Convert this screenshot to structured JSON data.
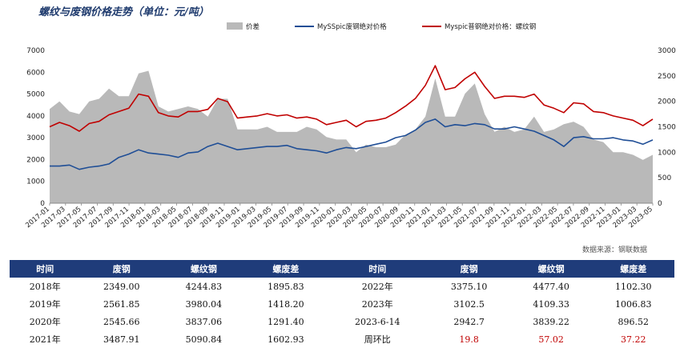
{
  "title": "螺纹与废钢价格走势（单位：元/吨）",
  "source": "数据来源：钢联数据",
  "chart_data": {
    "type": "line",
    "legend": [
      {
        "name": "价差",
        "color": "#b9b9b9",
        "kind": "area"
      },
      {
        "name": "MySSpic废钢绝对价格",
        "color": "#1f4e96",
        "kind": "line"
      },
      {
        "name": "Myspic普钢绝对价格：螺纹钢",
        "color": "#c00000",
        "kind": "line"
      }
    ],
    "legend_position": "top",
    "y_left": {
      "min": 0,
      "max": 7000,
      "ticks": [
        0,
        1000,
        2000,
        3000,
        4000,
        5000,
        6000,
        7000
      ]
    },
    "y_right": {
      "min": 0,
      "max": 3000,
      "ticks": [
        0,
        500,
        1000,
        1500,
        2000,
        2500,
        3000
      ]
    },
    "x_ticks": [
      "2017-01",
      "2017-03",
      "2017-05",
      "2017-07",
      "2017-09",
      "2017-11",
      "2018-01",
      "2018-03",
      "2018-05",
      "2018-07",
      "2018-09",
      "2018-11",
      "2019-01",
      "2019-03",
      "2019-05",
      "2019-07",
      "2019-09",
      "2019-11",
      "2020-01",
      "2020-03",
      "2020-05",
      "2020-07",
      "2020-09",
      "2020-11",
      "2021-01",
      "2021-03",
      "2021-05",
      "2021-07",
      "2021-09",
      "2021-11",
      "2022-01",
      "2022-03",
      "2022-05",
      "2022-07",
      "2022-09",
      "2022-11",
      "2023-01",
      "2023-03",
      "2023-05"
    ],
    "rebar_price": [
      3500,
      3700,
      3550,
      3300,
      3650,
      3750,
      4050,
      4200,
      4350,
      5000,
      4900,
      4150,
      4000,
      3950,
      4200,
      4200,
      4300,
      4800,
      4650,
      3900,
      3950,
      4000,
      4100,
      4000,
      4050,
      3900,
      3950,
      3850,
      3600,
      3700,
      3800,
      3500,
      3750,
      3800,
      3900,
      4150,
      4450,
      4800,
      5400,
      6300,
      5200,
      5300,
      5700,
      6000,
      5350,
      4800,
      4900,
      4900,
      4850,
      5000,
      4500,
      4350,
      4150,
      4600,
      4550,
      4200,
      4150,
      4000,
      3900,
      3800,
      3550,
      3850
    ],
    "scrap_price": [
      1700,
      1700,
      1750,
      1550,
      1650,
      1700,
      1800,
      2100,
      2250,
      2450,
      2300,
      2250,
      2200,
      2100,
      2300,
      2350,
      2600,
      2750,
      2600,
      2450,
      2500,
      2550,
      2600,
      2600,
      2650,
      2500,
      2450,
      2400,
      2300,
      2450,
      2550,
      2500,
      2600,
      2700,
      2800,
      3000,
      3100,
      3350,
      3700,
      3850,
      3500,
      3600,
      3550,
      3650,
      3600,
      3400,
      3400,
      3500,
      3400,
      3300,
      3100,
      2900,
      2600,
      3000,
      3050,
      2950,
      2950,
      3000,
      2900,
      2850,
      2700,
      2900
    ],
    "spread": [
      1850,
      2000,
      1800,
      1750,
      2000,
      2050,
      2250,
      2100,
      2100,
      2550,
      2600,
      1900,
      1800,
      1850,
      1900,
      1850,
      1700,
      2050,
      2050,
      1450,
      1450,
      1450,
      1500,
      1400,
      1400,
      1400,
      1500,
      1450,
      1300,
      1250,
      1250,
      1000,
      1150,
      1100,
      1100,
      1150,
      1350,
      1450,
      1700,
      2450,
      1700,
      1700,
      2150,
      2350,
      1750,
      1400,
      1500,
      1400,
      1450,
      1700,
      1400,
      1450,
      1550,
      1600,
      1500,
      1250,
      1200,
      1000,
      1000,
      950,
      850,
      950
    ]
  },
  "table": {
    "headers": [
      "时间",
      "废钢",
      "螺纹钢",
      "螺废差",
      "时间",
      "废钢",
      "螺纹钢",
      "螺废差"
    ],
    "rows": [
      [
        "2018年",
        "2349.00",
        "4244.83",
        "1895.83",
        "2022年",
        "3375.10",
        "4477.40",
        "1102.30"
      ],
      [
        "2019年",
        "2561.85",
        "3980.04",
        "1418.20",
        "2023年",
        "3102.5",
        "4109.33",
        "1006.83"
      ],
      [
        "2020年",
        "2545.66",
        "3837.06",
        "1291.40",
        "2023-6-14",
        "2942.7",
        "3839.22",
        "896.52"
      ],
      [
        "2021年",
        "3487.91",
        "5090.84",
        "1602.93",
        "周环比",
        "19.8",
        "57.02",
        "37.22"
      ]
    ]
  }
}
